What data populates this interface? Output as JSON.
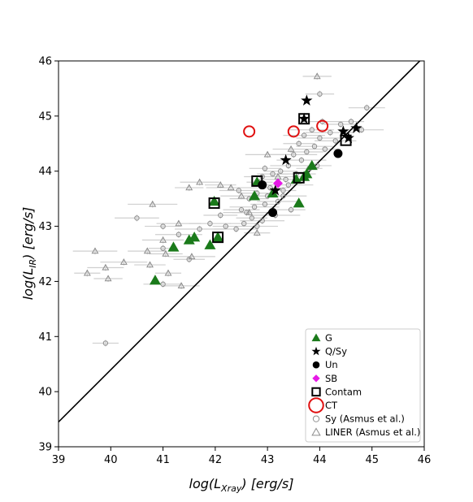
{
  "chart_data": {
    "type": "scatter",
    "title": "",
    "xlabel": "log(L",
    "xlabel_sub": "Xray",
    "xlabel_unit": ") [erg/s]",
    "ylabel": "log(L",
    "ylabel_sub": "IR",
    "ylabel_unit": ") [erg/s]",
    "xlim": [
      39,
      46
    ],
    "ylim": [
      39,
      46
    ],
    "xticks": [
      "39",
      "40",
      "41",
      "42",
      "43",
      "44",
      "45",
      "46"
    ],
    "yticks": [
      "39",
      "40",
      "41",
      "42",
      "43",
      "44",
      "45",
      "46"
    ],
    "grid": false,
    "legend_position": "lower-right",
    "relation_line": {
      "x": [
        39,
        46
      ],
      "y": [
        39.45,
        46.08
      ]
    },
    "series": [
      {
        "name": "G",
        "marker": "triangle",
        "color": "#1a7a1a",
        "points": [
          [
            40.85,
            42.02
          ],
          [
            41.2,
            42.62
          ],
          [
            41.5,
            42.75
          ],
          [
            41.6,
            42.8
          ],
          [
            41.9,
            42.66
          ],
          [
            42.05,
            42.8
          ],
          [
            41.98,
            43.45
          ],
          [
            42.75,
            43.55
          ],
          [
            43.1,
            43.6
          ],
          [
            43.6,
            43.42
          ],
          [
            43.7,
            43.9
          ],
          [
            43.75,
            43.95
          ],
          [
            43.85,
            44.1
          ],
          [
            42.8,
            43.8
          ],
          [
            43.55,
            43.85
          ]
        ]
      },
      {
        "name": "Q/Sy",
        "marker": "star",
        "color": "#000000",
        "points": [
          [
            43.15,
            43.65
          ],
          [
            43.35,
            44.2
          ],
          [
            43.7,
            44.95
          ],
          [
            43.75,
            45.28
          ],
          [
            44.45,
            44.72
          ],
          [
            44.55,
            44.6
          ],
          [
            44.7,
            44.78
          ]
        ]
      },
      {
        "name": "Un",
        "marker": "circle",
        "color": "#000000",
        "points": [
          [
            42.9,
            43.75
          ],
          [
            43.1,
            43.25
          ],
          [
            44.35,
            44.32
          ]
        ]
      },
      {
        "name": "SB",
        "marker": "diamond",
        "color": "#e619e6",
        "points": [
          [
            43.2,
            43.78
          ]
        ]
      },
      {
        "name": "Contam",
        "marker": "open-square",
        "color": "#000000",
        "points": [
          [
            41.98,
            43.42
          ],
          [
            42.05,
            42.8
          ],
          [
            42.8,
            43.82
          ],
          [
            43.6,
            43.88
          ],
          [
            43.7,
            44.95
          ],
          [
            44.5,
            44.56
          ]
        ]
      },
      {
        "name": "CT",
        "marker": "open-circle",
        "color": "#e01010",
        "points": [
          [
            42.65,
            44.72
          ],
          [
            43.5,
            44.72
          ],
          [
            44.05,
            44.82
          ]
        ]
      },
      {
        "name": "Sy (Asmus et al.)",
        "marker": "open-circle",
        "color": "#8c8c8c",
        "points": [
          [
            39.9,
            40.88
          ],
          [
            40.5,
            43.15
          ],
          [
            41.0,
            43.0
          ],
          [
            41.0,
            42.6
          ],
          [
            41.3,
            42.85
          ],
          [
            41.0,
            41.95
          ],
          [
            41.5,
            42.4
          ],
          [
            41.7,
            42.95
          ],
          [
            41.9,
            43.05
          ],
          [
            42.1,
            43.2
          ],
          [
            42.2,
            43.0
          ],
          [
            42.4,
            42.95
          ],
          [
            42.5,
            43.3
          ],
          [
            42.55,
            43.05
          ],
          [
            42.6,
            43.25
          ],
          [
            42.65,
            43.5
          ],
          [
            42.7,
            43.15
          ],
          [
            42.75,
            43.35
          ],
          [
            42.8,
            43.0
          ],
          [
            42.8,
            43.6
          ],
          [
            42.85,
            43.8
          ],
          [
            42.9,
            43.1
          ],
          [
            42.9,
            43.9
          ],
          [
            42.95,
            43.4
          ],
          [
            43.0,
            43.55
          ],
          [
            43.05,
            43.7
          ],
          [
            43.1,
            43.95
          ],
          [
            43.15,
            43.2
          ],
          [
            43.2,
            43.45
          ],
          [
            43.25,
            44.0
          ],
          [
            43.3,
            43.65
          ],
          [
            43.35,
            43.85
          ],
          [
            43.4,
            44.1
          ],
          [
            43.45,
            43.3
          ],
          [
            43.5,
            44.3
          ],
          [
            43.55,
            43.95
          ],
          [
            43.6,
            44.5
          ],
          [
            43.65,
            44.2
          ],
          [
            43.7,
            44.65
          ],
          [
            43.75,
            44.35
          ],
          [
            43.8,
            44.05
          ],
          [
            43.85,
            44.75
          ],
          [
            43.9,
            44.45
          ],
          [
            43.95,
            44.1
          ],
          [
            44.0,
            44.6
          ],
          [
            44.05,
            44.9
          ],
          [
            44.1,
            44.4
          ],
          [
            44.2,
            44.7
          ],
          [
            44.3,
            44.55
          ],
          [
            44.4,
            44.85
          ],
          [
            44.6,
            44.9
          ],
          [
            44.8,
            44.75
          ],
          [
            44.9,
            45.15
          ],
          [
            44.0,
            45.4
          ],
          [
            43.3,
            43.55
          ],
          [
            42.45,
            43.65
          ],
          [
            42.95,
            44.05
          ],
          [
            43.4,
            43.75
          ]
        ]
      },
      {
        "name": "LINER (Asmus et al.)",
        "marker": "open-triangle",
        "color": "#8c8c8c",
        "points": [
          [
            39.55,
            42.15
          ],
          [
            39.7,
            42.55
          ],
          [
            39.9,
            42.25
          ],
          [
            39.95,
            42.05
          ],
          [
            40.25,
            42.35
          ],
          [
            40.7,
            42.55
          ],
          [
            40.75,
            42.3
          ],
          [
            40.8,
            43.4
          ],
          [
            41.0,
            42.75
          ],
          [
            41.05,
            42.5
          ],
          [
            41.1,
            42.15
          ],
          [
            41.3,
            43.05
          ],
          [
            41.35,
            41.92
          ],
          [
            41.5,
            43.7
          ],
          [
            41.55,
            42.45
          ],
          [
            41.7,
            43.8
          ],
          [
            42.1,
            43.75
          ],
          [
            42.3,
            43.7
          ],
          [
            42.5,
            43.55
          ],
          [
            42.65,
            43.25
          ],
          [
            42.8,
            42.88
          ],
          [
            43.0,
            44.3
          ],
          [
            43.45,
            44.4
          ],
          [
            43.95,
            45.72
          ],
          [
            43.2,
            43.9
          ]
        ]
      }
    ]
  }
}
